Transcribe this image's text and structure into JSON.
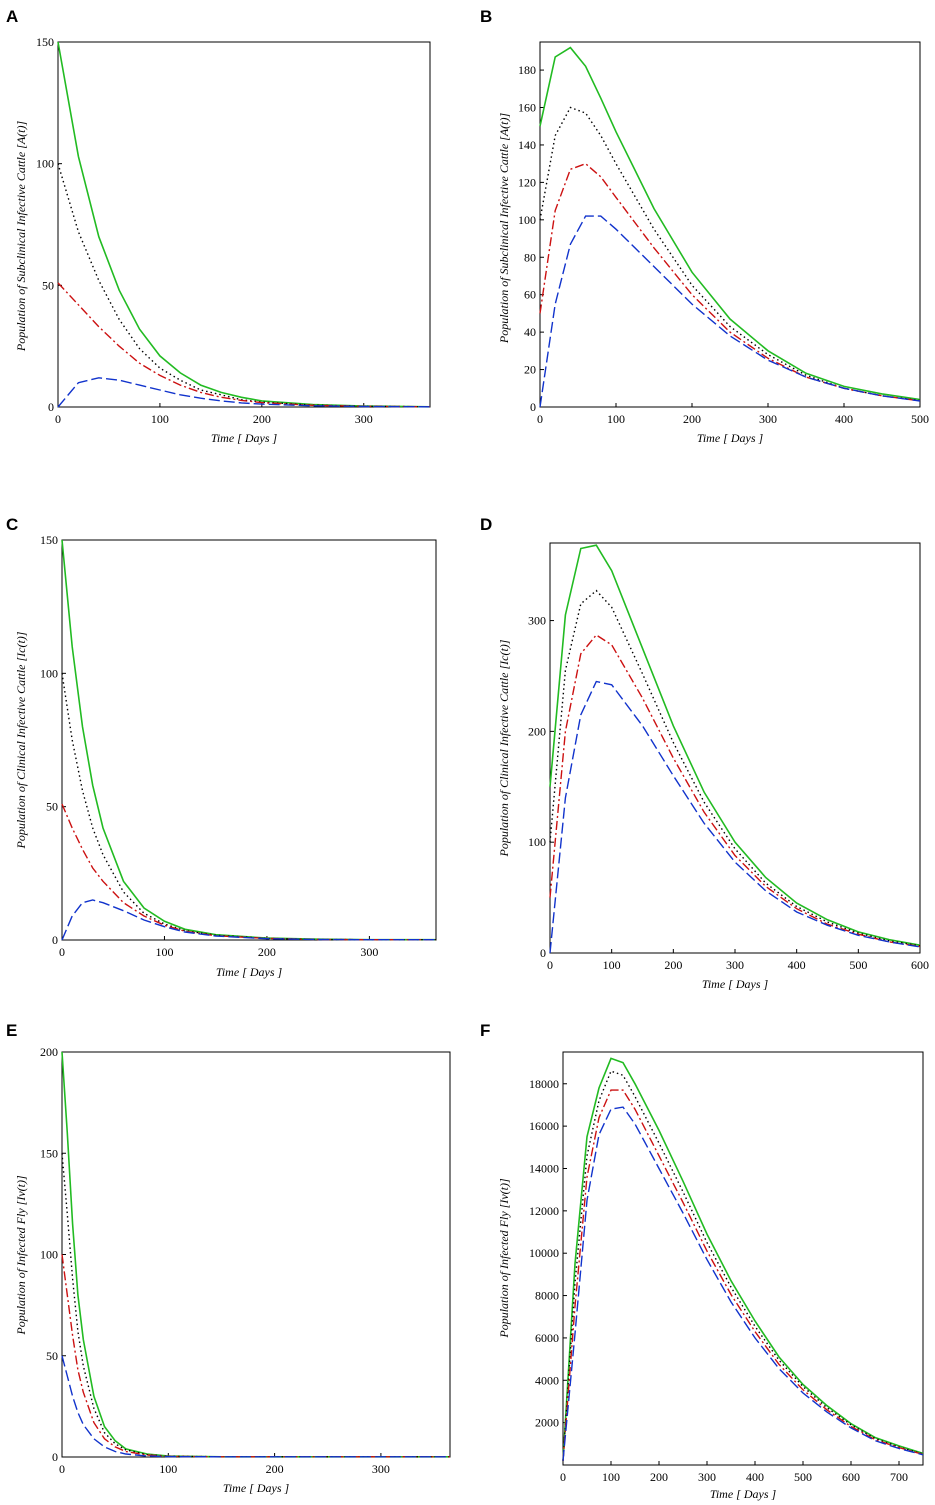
{
  "figure": {
    "colors": {
      "green": "#22bb22",
      "black": "#000000",
      "red": "#cc1111",
      "blue": "#1133cc"
    }
  },
  "chart_data": [
    {
      "panel": "A",
      "type": "line",
      "xlabel": "Time [ Days ]",
      "ylabel": "Population of Subclinical Infective Cattle [A(t)]",
      "xlim": [
        0,
        365
      ],
      "ylim": [
        0,
        150
      ],
      "xticks": [
        0,
        100,
        200,
        300
      ],
      "yticks": [
        0,
        50,
        100,
        150
      ],
      "series": [
        {
          "name": "green-solid",
          "color": "#22bb22",
          "dash": "solid",
          "x": [
            0,
            20,
            40,
            60,
            80,
            100,
            120,
            140,
            160,
            180,
            200,
            250,
            300,
            365
          ],
          "y": [
            150,
            103,
            70,
            48,
            32,
            21,
            14,
            9,
            6,
            4,
            2.5,
            1,
            0.4,
            0.1
          ]
        },
        {
          "name": "black-dotted",
          "color": "#000000",
          "dash": "dotted",
          "x": [
            0,
            20,
            40,
            60,
            80,
            100,
            120,
            140,
            160,
            180,
            200,
            250,
            300,
            365
          ],
          "y": [
            100,
            72,
            52,
            36,
            24,
            16,
            11,
            7,
            5,
            3,
            2,
            0.8,
            0.3,
            0.1
          ]
        },
        {
          "name": "red-dashdot",
          "color": "#cc1111",
          "dash": "dashdot",
          "x": [
            0,
            20,
            40,
            60,
            80,
            100,
            120,
            140,
            160,
            180,
            200,
            250,
            300,
            365
          ],
          "y": [
            51,
            42,
            33,
            25,
            18,
            13,
            9,
            6,
            4,
            2.7,
            1.8,
            0.7,
            0.3,
            0.1
          ]
        },
        {
          "name": "blue-dashed",
          "color": "#1133cc",
          "dash": "dashed",
          "x": [
            0,
            20,
            40,
            60,
            80,
            100,
            120,
            140,
            160,
            180,
            200,
            250,
            300,
            365
          ],
          "y": [
            0,
            10,
            12,
            11,
            9,
            7,
            5,
            3.6,
            2.5,
            1.7,
            1.2,
            0.5,
            0.2,
            0.1
          ]
        }
      ]
    },
    {
      "panel": "B",
      "type": "line",
      "xlabel": "Time [ Days ]",
      "ylabel": "Population of Subclinical Infective Cattle [A(t)]",
      "xlim": [
        0,
        500
      ],
      "ylim": [
        0,
        195
      ],
      "xticks": [
        0,
        100,
        200,
        300,
        400,
        500
      ],
      "yticks": [
        0,
        20,
        40,
        60,
        80,
        100,
        120,
        140,
        160,
        180
      ],
      "series": [
        {
          "name": "green-solid",
          "color": "#22bb22",
          "dash": "solid",
          "x": [
            0,
            20,
            40,
            60,
            80,
            100,
            150,
            200,
            250,
            300,
            350,
            400,
            450,
            500
          ],
          "y": [
            150,
            187,
            192,
            182,
            165,
            147,
            106,
            72,
            47,
            30,
            18,
            11,
            7,
            4
          ]
        },
        {
          "name": "black-dotted",
          "color": "#000000",
          "dash": "dotted",
          "x": [
            0,
            20,
            40,
            60,
            80,
            100,
            150,
            200,
            250,
            300,
            350,
            400,
            450,
            500
          ],
          "y": [
            100,
            145,
            160,
            157,
            145,
            130,
            95,
            65,
            43,
            28,
            17,
            10,
            6,
            3.5
          ]
        },
        {
          "name": "red-dashdot",
          "color": "#cc1111",
          "dash": "dashdot",
          "x": [
            0,
            20,
            40,
            60,
            80,
            100,
            150,
            200,
            250,
            300,
            350,
            400,
            450,
            500
          ],
          "y": [
            50,
            105,
            127,
            130,
            123,
            112,
            85,
            60,
            40,
            26,
            16,
            10,
            6,
            3.3
          ]
        },
        {
          "name": "blue-dashed",
          "color": "#1133cc",
          "dash": "dashed",
          "x": [
            0,
            20,
            40,
            60,
            80,
            100,
            150,
            200,
            250,
            300,
            350,
            400,
            450,
            500
          ],
          "y": [
            0,
            55,
            87,
            102,
            102,
            95,
            75,
            55,
            38,
            25,
            16,
            10,
            6,
            3.2
          ]
        }
      ]
    },
    {
      "panel": "C",
      "type": "line",
      "xlabel": "Time [ Days ]",
      "ylabel": "Population of Clinical Infective Cattle [Ic(t)]",
      "xlim": [
        0,
        365
      ],
      "ylim": [
        0,
        150
      ],
      "xticks": [
        0,
        100,
        200,
        300
      ],
      "yticks": [
        0,
        50,
        100,
        150
      ],
      "series": [
        {
          "name": "green-solid",
          "color": "#22bb22",
          "dash": "solid",
          "x": [
            0,
            10,
            20,
            30,
            40,
            60,
            80,
            100,
            120,
            150,
            200,
            250,
            300,
            365
          ],
          "y": [
            150,
            110,
            80,
            58,
            42,
            22,
            12,
            7,
            4,
            2,
            0.7,
            0.3,
            0.1,
            0.1
          ]
        },
        {
          "name": "black-dotted",
          "color": "#000000",
          "dash": "dotted",
          "x": [
            0,
            10,
            20,
            30,
            40,
            60,
            80,
            100,
            120,
            150,
            200,
            250,
            300,
            365
          ],
          "y": [
            100,
            75,
            56,
            42,
            32,
            18,
            10,
            6,
            3.5,
            1.8,
            0.6,
            0.2,
            0.1,
            0.1
          ]
        },
        {
          "name": "red-dashdot",
          "color": "#cc1111",
          "dash": "dashdot",
          "x": [
            0,
            10,
            20,
            30,
            40,
            60,
            80,
            100,
            120,
            150,
            200,
            250,
            300,
            365
          ],
          "y": [
            51,
            42,
            34,
            27,
            22,
            14,
            9,
            5.5,
            3.3,
            1.6,
            0.6,
            0.2,
            0.1,
            0.1
          ]
        },
        {
          "name": "blue-dashed",
          "color": "#1133cc",
          "dash": "dashed",
          "x": [
            0,
            10,
            20,
            30,
            40,
            60,
            80,
            100,
            120,
            150,
            200,
            250,
            300,
            365
          ],
          "y": [
            0,
            9,
            14,
            15,
            14,
            11,
            7.5,
            5,
            3,
            1.5,
            0.5,
            0.2,
            0.1,
            0.1
          ]
        }
      ]
    },
    {
      "panel": "D",
      "type": "line",
      "xlabel": "Time [ Days ]",
      "ylabel": "Population of Clinical Infective Cattle [Ic(t)]",
      "xlim": [
        0,
        600
      ],
      "ylim": [
        0,
        370
      ],
      "xticks": [
        0,
        100,
        200,
        300,
        400,
        500,
        600
      ],
      "yticks": [
        0,
        100,
        200,
        300
      ],
      "series": [
        {
          "name": "green-solid",
          "color": "#22bb22",
          "dash": "solid",
          "x": [
            0,
            25,
            50,
            75,
            100,
            150,
            200,
            250,
            300,
            350,
            400,
            450,
            500,
            550,
            600
          ],
          "y": [
            150,
            305,
            365,
            368,
            345,
            275,
            205,
            145,
            100,
            68,
            45,
            30,
            19,
            12,
            7
          ]
        },
        {
          "name": "black-dotted",
          "color": "#000000",
          "dash": "dotted",
          "x": [
            0,
            25,
            50,
            75,
            100,
            150,
            200,
            250,
            300,
            350,
            400,
            450,
            500,
            550,
            600
          ],
          "y": [
            100,
            255,
            315,
            327,
            312,
            252,
            190,
            136,
            94,
            63,
            42,
            28,
            18,
            11,
            6.5
          ]
        },
        {
          "name": "red-dashdot",
          "color": "#cc1111",
          "dash": "dashdot",
          "x": [
            0,
            25,
            50,
            75,
            100,
            150,
            200,
            250,
            300,
            350,
            400,
            450,
            500,
            550,
            600
          ],
          "y": [
            50,
            200,
            270,
            287,
            278,
            230,
            176,
            127,
            88,
            60,
            40,
            26,
            17,
            10,
            6
          ]
        },
        {
          "name": "blue-dashed",
          "color": "#1133cc",
          "dash": "dashed",
          "x": [
            0,
            25,
            50,
            75,
            100,
            150,
            200,
            250,
            300,
            350,
            400,
            450,
            500,
            550,
            600
          ],
          "y": [
            0,
            140,
            215,
            245,
            242,
            205,
            160,
            117,
            82,
            56,
            37,
            25,
            16,
            10,
            5.5
          ]
        }
      ]
    },
    {
      "panel": "E",
      "type": "line",
      "xlabel": "Time [ Days ]",
      "ylabel": "Population of Infected Fly [Iv(t)]",
      "xlim": [
        0,
        365
      ],
      "ylim": [
        0,
        200
      ],
      "xticks": [
        0,
        100,
        200,
        300
      ],
      "yticks": [
        0,
        50,
        100,
        150,
        200
      ],
      "series": [
        {
          "name": "green-solid",
          "color": "#22bb22",
          "dash": "solid",
          "x": [
            0,
            5,
            10,
            15,
            20,
            30,
            40,
            50,
            60,
            80,
            100,
            150,
            200,
            365
          ],
          "y": [
            200,
            160,
            115,
            80,
            58,
            30,
            15,
            8,
            4,
            1.5,
            0.5,
            0.1,
            0.1,
            0.1
          ]
        },
        {
          "name": "black-dotted",
          "color": "#000000",
          "dash": "dotted",
          "x": [
            0,
            5,
            10,
            15,
            20,
            30,
            40,
            50,
            60,
            80,
            100,
            150,
            200,
            365
          ],
          "y": [
            150,
            120,
            88,
            62,
            45,
            24,
            12,
            6.5,
            3.5,
            1.2,
            0.4,
            0.1,
            0.1,
            0.1
          ]
        },
        {
          "name": "red-dashdot",
          "color": "#cc1111",
          "dash": "dashdot",
          "x": [
            0,
            5,
            10,
            15,
            20,
            30,
            40,
            50,
            60,
            80,
            100,
            150,
            200,
            365
          ],
          "y": [
            100,
            80,
            60,
            43,
            32,
            17,
            9,
            5,
            2.7,
            1,
            0.3,
            0.1,
            0.1,
            0.1
          ]
        },
        {
          "name": "blue-dashed",
          "color": "#1133cc",
          "dash": "dashed",
          "x": [
            0,
            5,
            10,
            15,
            20,
            30,
            40,
            50,
            60,
            80,
            100,
            150,
            200,
            365
          ],
          "y": [
            50,
            40,
            30,
            22,
            16,
            9,
            5,
            2.7,
            1.5,
            0.5,
            0.2,
            0.1,
            0.1,
            0.1
          ]
        }
      ]
    },
    {
      "panel": "F",
      "type": "line",
      "xlabel": "Time [ Days ]",
      "ylabel": "Population of Infected Fly [Iv(t)]",
      "xlim": [
        0,
        750
      ],
      "ylim": [
        0,
        19500
      ],
      "xticks": [
        0,
        100,
        200,
        300,
        400,
        500,
        600,
        700
      ],
      "yticks": [
        2000,
        4000,
        6000,
        8000,
        10000,
        12000,
        14000,
        16000,
        18000
      ],
      "series": [
        {
          "name": "green-solid",
          "color": "#22bb22",
          "dash": "solid",
          "x": [
            0,
            25,
            50,
            75,
            100,
            125,
            150,
            200,
            250,
            300,
            350,
            400,
            450,
            500,
            550,
            600,
            650,
            700,
            750
          ],
          "y": [
            200,
            9500,
            15500,
            17800,
            19200,
            19000,
            18000,
            15800,
            13400,
            10900,
            8700,
            6800,
            5100,
            3800,
            2800,
            1950,
            1300,
            900,
            550
          ]
        },
        {
          "name": "black-dotted",
          "color": "#000000",
          "dash": "dotted",
          "x": [
            0,
            25,
            50,
            75,
            100,
            125,
            150,
            200,
            250,
            300,
            350,
            400,
            450,
            500,
            550,
            600,
            650,
            700,
            750
          ],
          "y": [
            200,
            8600,
            14600,
            17200,
            18600,
            18400,
            17400,
            15200,
            12900,
            10500,
            8400,
            6550,
            4950,
            3700,
            2700,
            1900,
            1250,
            850,
            520
          ]
        },
        {
          "name": "red-dashdot",
          "color": "#cc1111",
          "dash": "dashdot",
          "x": [
            0,
            25,
            50,
            75,
            100,
            125,
            150,
            200,
            250,
            300,
            350,
            400,
            450,
            500,
            550,
            600,
            650,
            700,
            750
          ],
          "y": [
            200,
            7500,
            13600,
            16400,
            17700,
            17700,
            16800,
            14600,
            12400,
            10100,
            8050,
            6300,
            4750,
            3550,
            2600,
            1820,
            1200,
            820,
            500
          ]
        },
        {
          "name": "blue-dashed",
          "color": "#1133cc",
          "dash": "dashed",
          "x": [
            0,
            25,
            50,
            75,
            100,
            125,
            150,
            200,
            250,
            300,
            350,
            400,
            450,
            500,
            550,
            600,
            650,
            700,
            750
          ],
          "y": [
            200,
            6200,
            12500,
            15600,
            16800,
            16900,
            16100,
            14000,
            11900,
            9700,
            7700,
            6000,
            4550,
            3400,
            2500,
            1750,
            1150,
            780,
            480
          ]
        }
      ]
    }
  ]
}
